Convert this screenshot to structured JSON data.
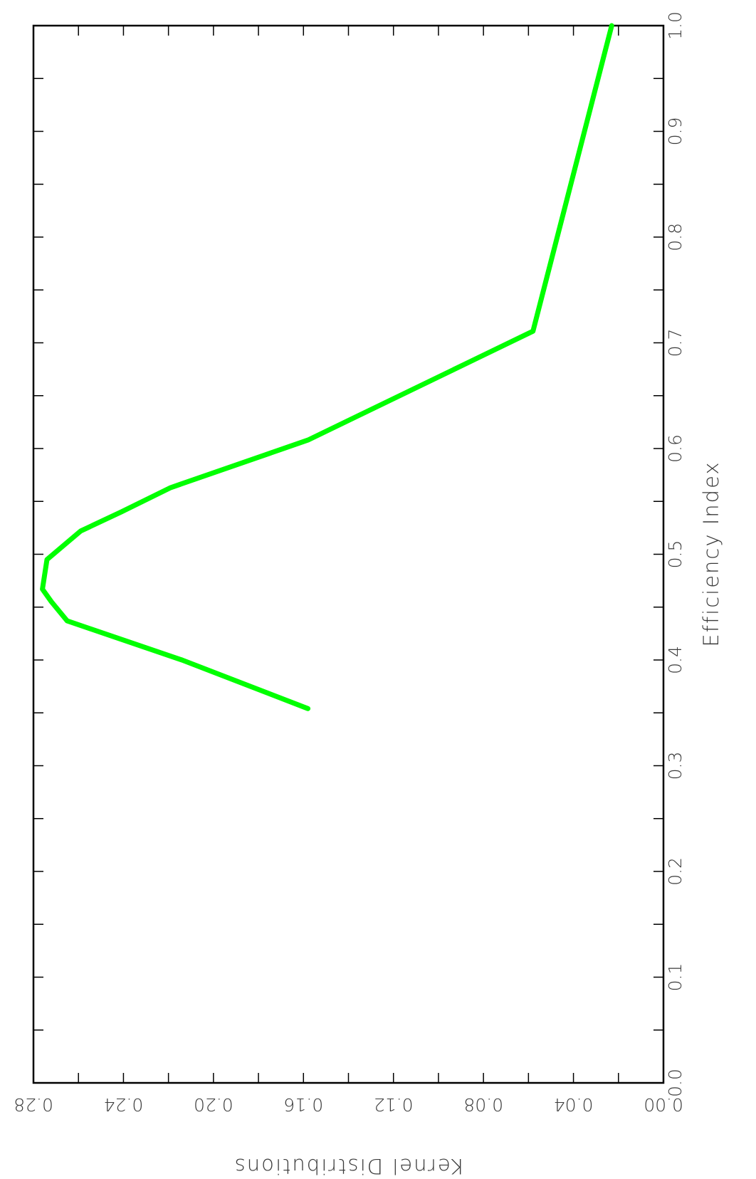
{
  "chart_data": {
    "type": "line",
    "orientation": "rotated-90-clockwise",
    "xlabel": "Efficiency Index",
    "ylabel": "Kernel Distributions",
    "xlim": [
      0.0,
      1.0
    ],
    "ylim": [
      0.0,
      0.28
    ],
    "x_ticks": [
      "0.0",
      "0.1",
      "0.2",
      "0.3",
      "0.4",
      "0.5",
      "0.6",
      "0.7",
      "0.8",
      "0.9",
      "1.0"
    ],
    "y_ticks": [
      "0.00",
      "0.04",
      "0.08",
      "0.12",
      "0.16",
      "0.20",
      "0.24",
      "0.28"
    ],
    "grid": false,
    "line_color": "#00ff00",
    "series": [
      {
        "x": [
          0.354,
          0.4,
          0.437,
          0.455,
          0.467,
          0.495,
          0.522,
          0.54,
          0.563,
          0.608,
          0.711,
          1.0
        ],
        "y": [
          0.158,
          0.214,
          0.265,
          0.272,
          0.276,
          0.274,
          0.259,
          0.241,
          0.219,
          0.158,
          0.058,
          0.023
        ]
      }
    ]
  }
}
